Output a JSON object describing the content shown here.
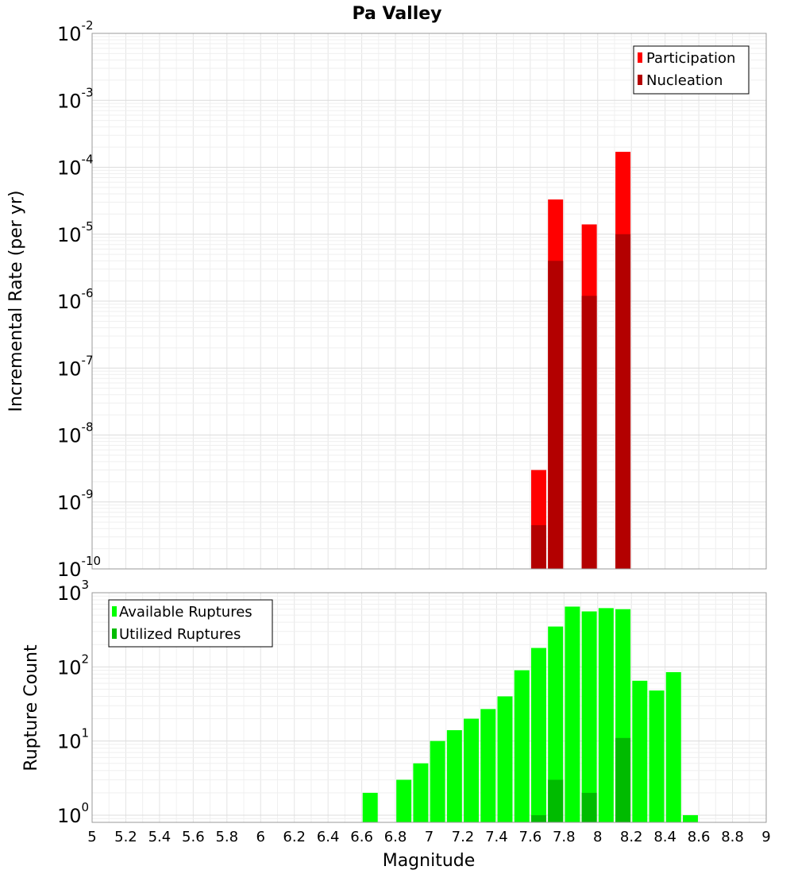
{
  "chart_data": [
    {
      "type": "bar",
      "title": "Pa Valley",
      "xlabel": "Magnitude",
      "ylabel": "Incremental Rate (per yr)",
      "yscale": "log",
      "ylim": [
        1e-10,
        0.01
      ],
      "xlim": [
        5,
        9
      ],
      "y_tick_exponents": [
        -10,
        -9,
        -8,
        -7,
        -6,
        -5,
        -4,
        -3,
        -2
      ],
      "legend": {
        "placement": "top-right",
        "entries": [
          "Participation",
          "Nucleation"
        ]
      },
      "series": [
        {
          "name": "Participation",
          "color": "#ff0000",
          "x": [
            7.65,
            7.75,
            7.95,
            8.15
          ],
          "values": [
            3e-09,
            3.3e-05,
            1.4e-05,
            0.00017
          ]
        },
        {
          "name": "Nucleation",
          "color": "#b30000",
          "x": [
            7.65,
            7.75,
            7.95,
            8.15
          ],
          "values": [
            4.5e-10,
            4e-06,
            1.2e-06,
            1e-05
          ]
        }
      ]
    },
    {
      "type": "bar",
      "xlabel": "Magnitude",
      "ylabel": "Rupture Count",
      "yscale": "log",
      "ylim": [
        0.8,
        1000
      ],
      "xlim": [
        5,
        9
      ],
      "x_ticks": [
        "5",
        "5.2",
        "5.4",
        "5.6",
        "5.8",
        "6",
        "6.2",
        "6.4",
        "6.6",
        "6.8",
        "7",
        "7.2",
        "7.4",
        "7.6",
        "7.8",
        "8",
        "8.2",
        "8.4",
        "8.6",
        "8.8",
        "9"
      ],
      "y_tick_exponents": [
        0,
        1,
        2,
        3
      ],
      "legend": {
        "placement": "top-left",
        "entries": [
          "Available Ruptures",
          "Utilized Ruptures"
        ]
      },
      "series": [
        {
          "name": "Available Ruptures",
          "color": "#00ff00",
          "x": [
            6.65,
            6.85,
            6.95,
            7.05,
            7.15,
            7.25,
            7.35,
            7.45,
            7.55,
            7.65,
            7.75,
            7.85,
            7.95,
            8.05,
            8.15,
            8.25,
            8.35,
            8.45,
            8.55
          ],
          "values": [
            2,
            3,
            5,
            10,
            14,
            20,
            27,
            40,
            90,
            180,
            350,
            650,
            560,
            620,
            600,
            65,
            48,
            85,
            1
          ]
        },
        {
          "name": "Utilized Ruptures",
          "color": "#00bb00",
          "x": [
            7.65,
            7.75,
            7.95,
            8.15
          ],
          "values": [
            1,
            3,
            2,
            11
          ]
        }
      ]
    }
  ]
}
